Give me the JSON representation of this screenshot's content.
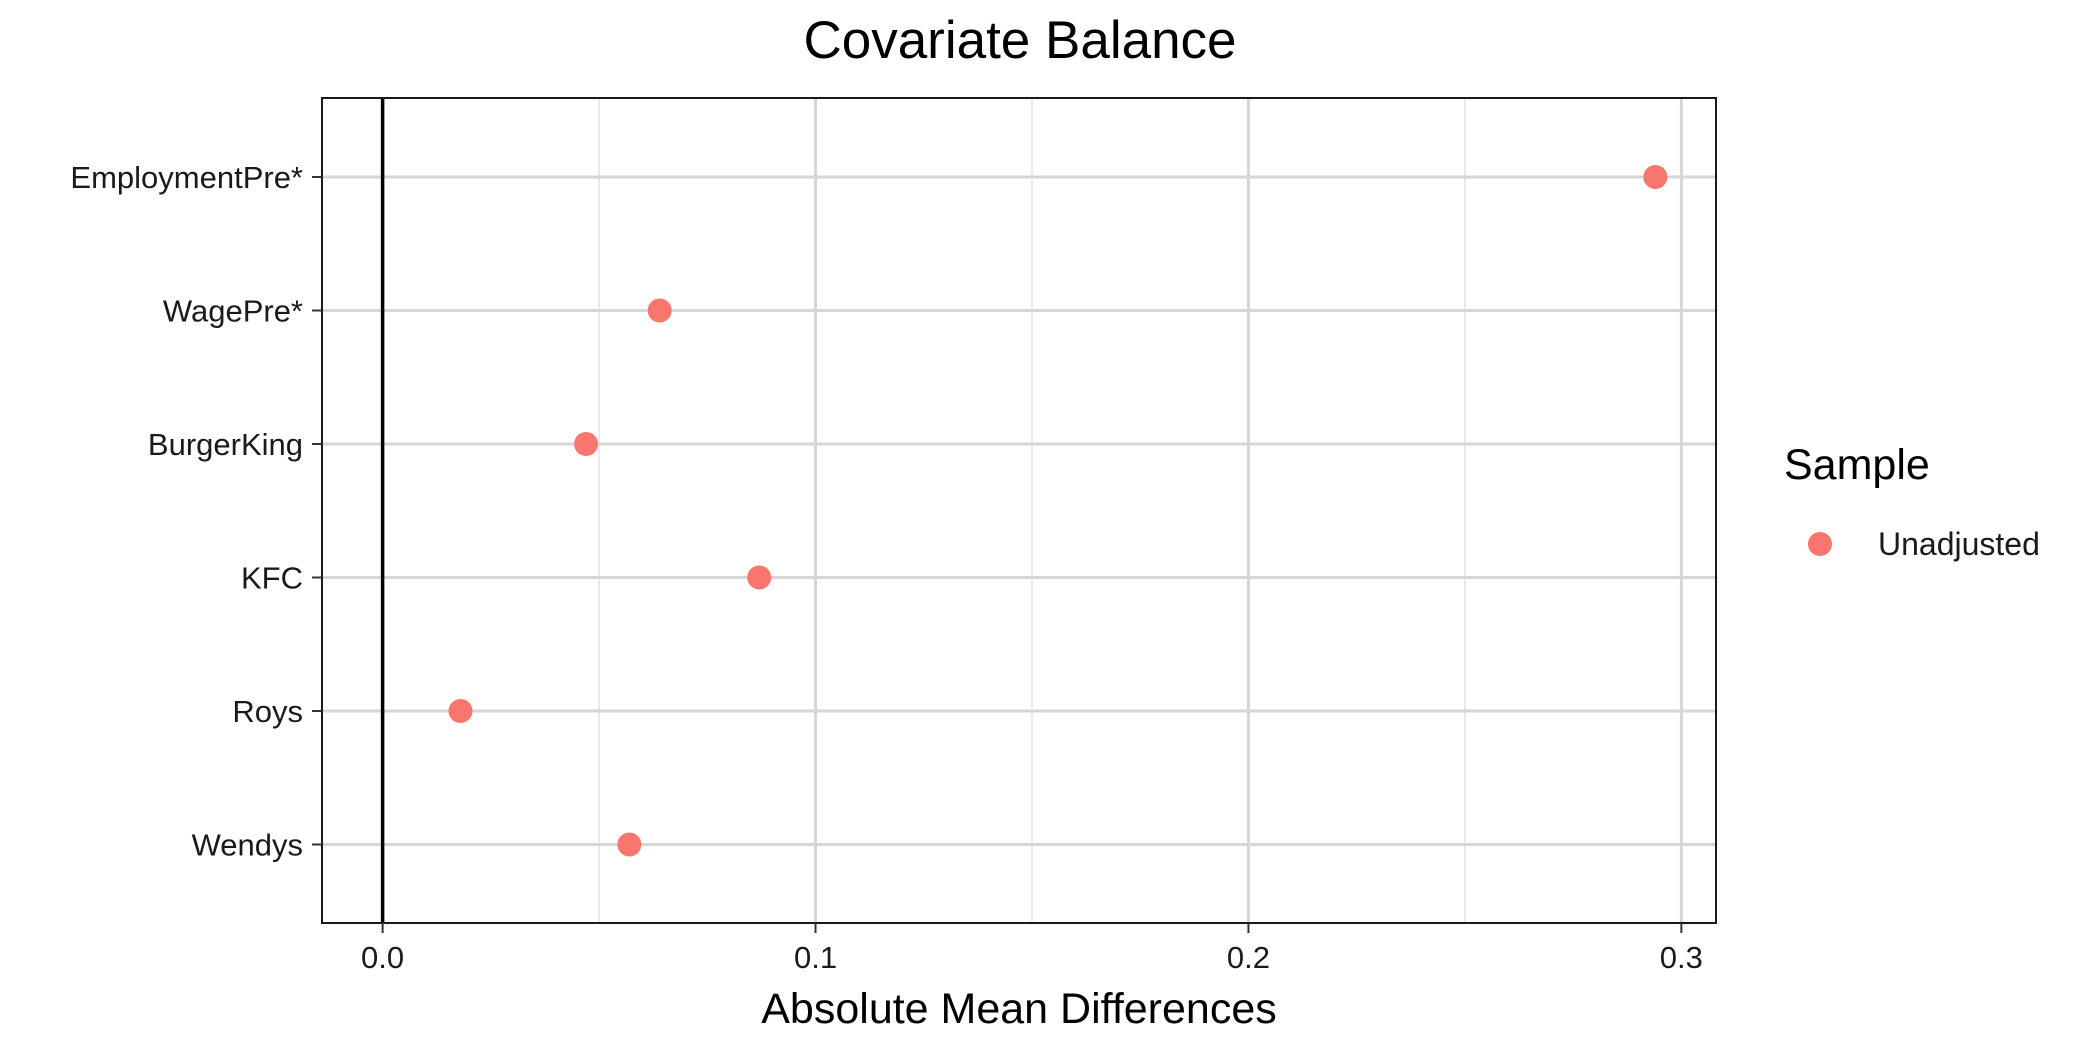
{
  "chart_data": {
    "type": "scatter",
    "title": "Covariate Balance",
    "xlabel": "Absolute Mean Differences",
    "ylabel": "",
    "xlim": [
      -0.014,
      0.308
    ],
    "x_ticks": [
      {
        "value": 0.0,
        "label": "0.0"
      },
      {
        "value": 0.1,
        "label": "0.1"
      },
      {
        "value": 0.2,
        "label": "0.2"
      },
      {
        "value": 0.3,
        "label": "0.3"
      }
    ],
    "x_minor_ticks": [
      0.05,
      0.15,
      0.25
    ],
    "reference_line_x": 0,
    "categories": [
      "EmploymentPre*",
      "WagePre*",
      "BurgerKing",
      "KFC",
      "Roys",
      "Wendys"
    ],
    "series": [
      {
        "name": "Unadjusted",
        "color": "#f8766d",
        "values": [
          0.294,
          0.064,
          0.047,
          0.087,
          0.018,
          0.057
        ]
      }
    ],
    "legend": {
      "title": "Sample",
      "position": "right"
    },
    "grid": true
  }
}
